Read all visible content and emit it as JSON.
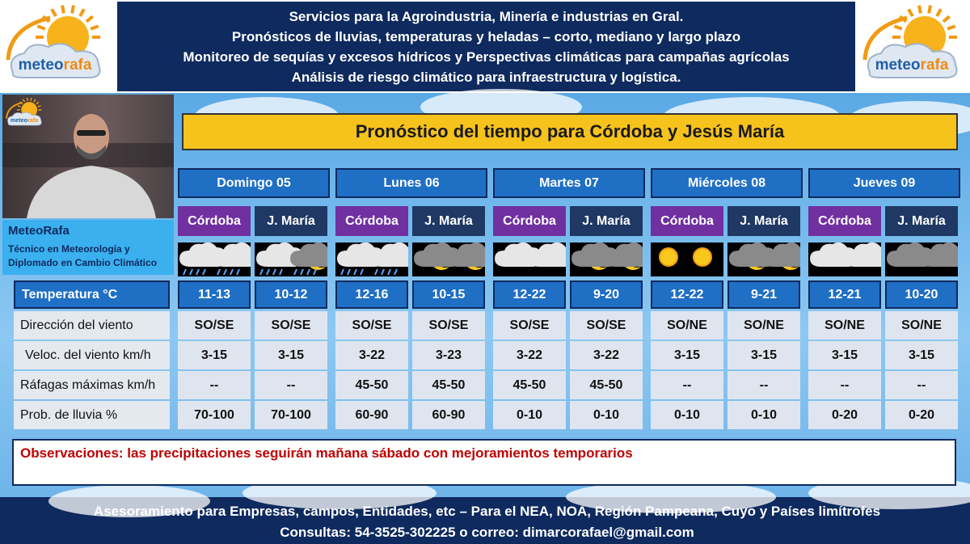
{
  "logo": [
    "meteo",
    "rafa"
  ],
  "header": {
    "lines": [
      "Servicios para la Agroindustria, Minería e industrias en Gral.",
      "Pronósticos de lluvias, temperaturas y heladas – corto, mediano y largo plazo",
      "Monitoreo de sequías y excesos hídricos y Perspectivas climáticas para campañas agrícolas",
      "Análisis de riesgo climático para infraestructura y logística."
    ]
  },
  "presenter": {
    "name": "MeteoRafa",
    "lines": [
      "Técnico en Meteorología y",
      "Diplomado en Cambio Climático"
    ]
  },
  "title": "Pronóstico del tiempo para Córdoba y Jesús María",
  "row_labels": [
    "Temperatura °C",
    "Dirección del viento",
    "Veloc. del viento km/h",
    "Ráfagas máximas km/h",
    "Prob. de lluvia %"
  ],
  "days": [
    {
      "label": "Domingo 05",
      "columns": [
        {
          "location": "Córdoba",
          "values": [
            "11-13",
            "SO/SE",
            "3-15",
            "--",
            "70-100"
          ]
        },
        {
          "location": "J. María",
          "values": [
            "10-12",
            "SO/SE",
            "3-15",
            "--",
            "70-100"
          ]
        }
      ]
    },
    {
      "label": "Lunes 06",
      "columns": [
        {
          "location": "Córdoba",
          "values": [
            "12-16",
            "SO/SE",
            "3-22",
            "45-50",
            "60-90"
          ]
        },
        {
          "location": "J. María",
          "values": [
            "10-15",
            "SO/SE",
            "3-23",
            "45-50",
            "60-90"
          ]
        }
      ]
    },
    {
      "label": "Martes 07",
      "columns": [
        {
          "location": "Córdoba",
          "values": [
            "12-22",
            "SO/SE",
            "3-22",
            "45-50",
            "0-10"
          ]
        },
        {
          "location": "J. María",
          "values": [
            "9-20",
            "SO/SE",
            "3-22",
            "45-50",
            "0-10"
          ]
        }
      ]
    },
    {
      "label": "Miércoles 08",
      "columns": [
        {
          "location": "Córdoba",
          "values": [
            "12-22",
            "SO/NE",
            "3-15",
            "--",
            "0-10"
          ]
        },
        {
          "location": "J. María",
          "values": [
            "9-21",
            "SO/NE",
            "3-15",
            "--",
            "0-10"
          ]
        }
      ]
    },
    {
      "label": "Jueves 09",
      "columns": [
        {
          "location": "Córdoba",
          "values": [
            "12-21",
            "SO/NE",
            "3-15",
            "--",
            "0-20"
          ]
        },
        {
          "location": "J. María",
          "values": [
            "10-20",
            "SO/NE",
            "3-15",
            "--",
            "0-20"
          ]
        }
      ]
    }
  ],
  "observations": "Observaciones: las precipitaciones seguirán mañana sábado con mejoramientos temporarios",
  "footer": {
    "lines": [
      "Asesoramiento para Empresas, campos, Entidades, etc – Para el  NEA, NOA, Región Pampeana, Cuyo y Países limítrofes",
      "Consultas: 54-3525-302225 o correo: dimarcorafael@gmail.com"
    ]
  }
}
